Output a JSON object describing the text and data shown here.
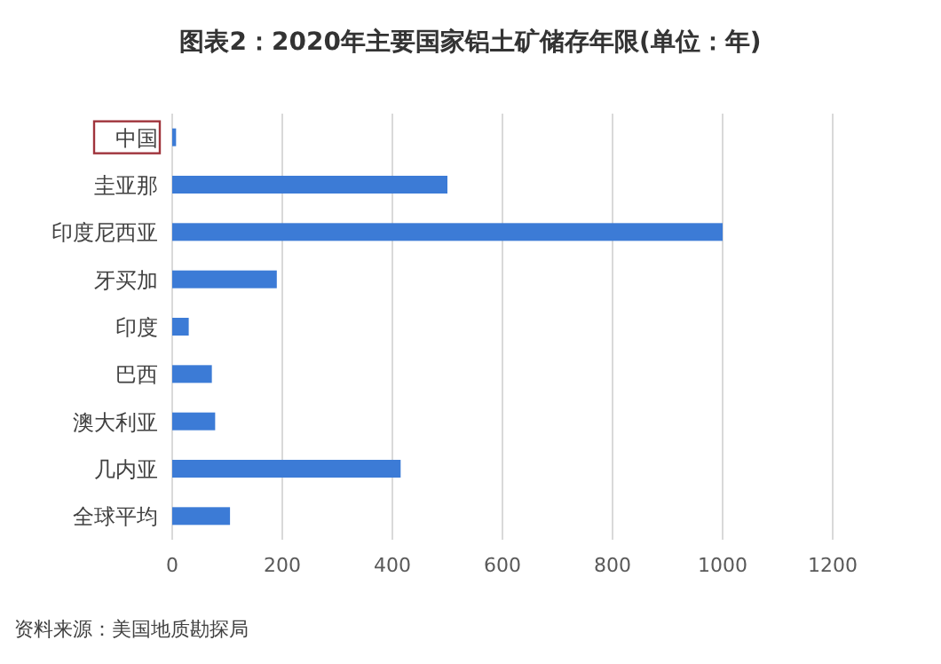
{
  "chart_data": {
    "type": "bar",
    "orientation": "horizontal",
    "title": "图表2：2020年主要国家铝土矿储存年限(单位：年)",
    "categories": [
      "中国",
      "圭亚那",
      "印度尼西亚",
      "牙买加",
      "印度",
      "巴西",
      "澳大利亚",
      "几内亚",
      "全球平均"
    ],
    "values": [
      7,
      500,
      1000,
      190,
      30,
      72,
      78,
      415,
      105
    ],
    "color": "#3c7bd6",
    "xlim": [
      0,
      1200
    ],
    "xticks": [
      0,
      200,
      400,
      600,
      800,
      1000,
      1200
    ],
    "grid": "x",
    "annotations": [
      "资料来源：美国地质勘探局"
    ]
  }
}
